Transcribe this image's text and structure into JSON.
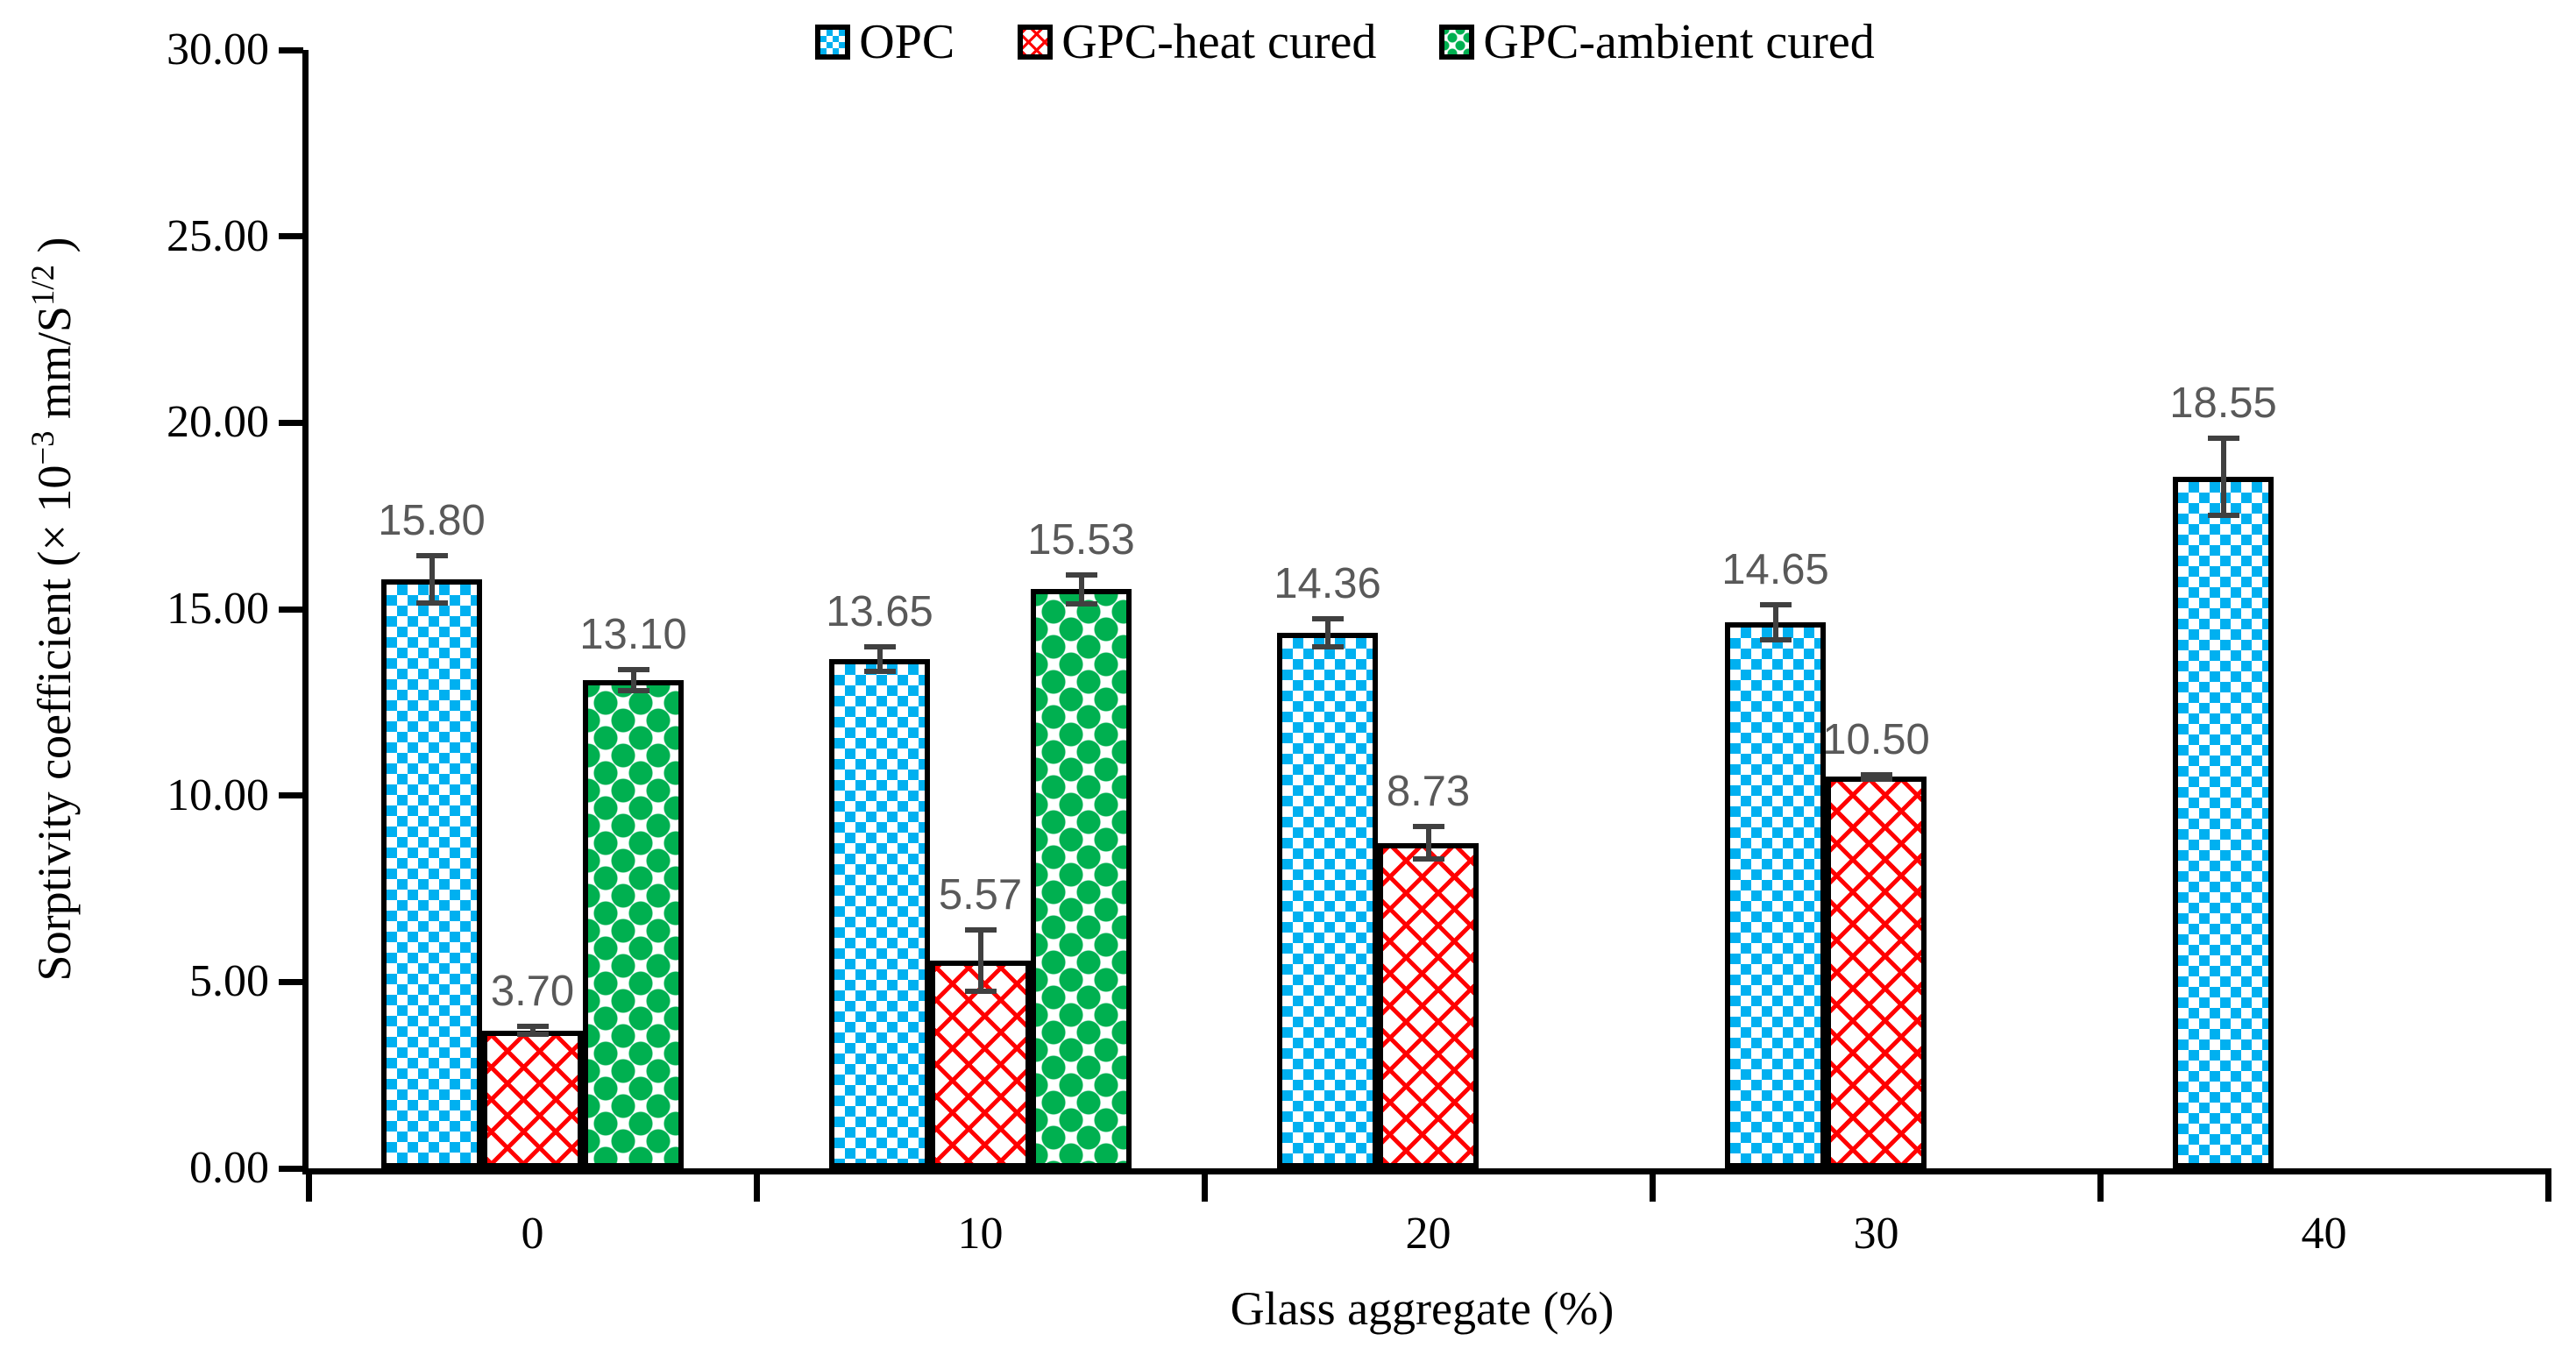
{
  "chart_data": {
    "type": "bar",
    "title": "",
    "xlabel": "Glass aggregate (%)",
    "ylabel": {
      "pre": "Sorptivity coefficient (× 10",
      "sup1": "−3",
      "mid": " mm/S",
      "sup2": "1/2",
      "post": " )"
    },
    "categories": [
      "0",
      "10",
      "20",
      "30",
      "40"
    ],
    "y_ticks": [
      "0.00",
      "5.00",
      "10.00",
      "15.00",
      "20.00",
      "25.00",
      "30.00"
    ],
    "y_tick_values": [
      0,
      5,
      10,
      15,
      20,
      25,
      30
    ],
    "ylim": [
      0,
      30
    ],
    "grid": false,
    "legend_position": "top",
    "axis_color": "#000000",
    "error_bar_color": "#404040",
    "label_color": "#595959",
    "series": [
      {
        "key": "opc",
        "name": "OPC",
        "color": "#00B0F0",
        "pattern": "pat-checker",
        "values": [
          15.8,
          13.65,
          14.36,
          14.65,
          18.55
        ],
        "errors": [
          0.7,
          0.4,
          0.45,
          0.55,
          1.1
        ],
        "labels": [
          "15.80",
          "13.65",
          "14.36",
          "14.65",
          "18.55"
        ]
      },
      {
        "key": "gpc-heat",
        "name": "GPC-heat cured",
        "color": "#FF0000",
        "pattern": "pat-lattice",
        "values": [
          3.7,
          5.57,
          8.73,
          10.5,
          null
        ],
        "errors": [
          0.18,
          0.9,
          0.5,
          0.12,
          null
        ],
        "labels": [
          "3.70",
          "5.57",
          "8.73",
          "10.50",
          null
        ]
      },
      {
        "key": "gpc-ambient",
        "name": "GPC-ambient cured",
        "color": "#00B050",
        "pattern": "pat-diamond",
        "values": [
          13.1,
          15.53,
          null,
          null,
          null
        ],
        "errors": [
          0.35,
          0.45,
          null,
          null,
          null
        ],
        "labels": [
          "13.10",
          "15.53",
          null,
          null,
          null
        ]
      }
    ]
  }
}
